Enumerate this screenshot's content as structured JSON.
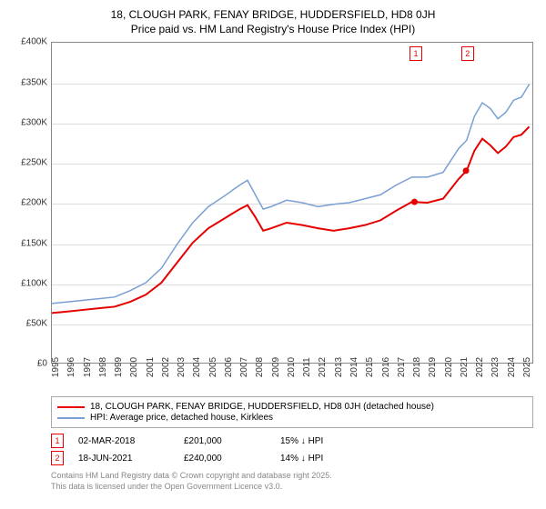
{
  "title_line1": "18, CLOUGH PARK, FENAY BRIDGE, HUDDERSFIELD, HD8 0JH",
  "title_line2": "Price paid vs. HM Land Registry's House Price Index (HPI)",
  "chart": {
    "type": "line",
    "background_color": "#ffffff",
    "grid_color": "#dddddd",
    "border_color": "#888888",
    "ylim": [
      0,
      400000
    ],
    "ytick_step": 50000,
    "yticks": [
      "£0",
      "£50K",
      "£100K",
      "£150K",
      "£200K",
      "£250K",
      "£300K",
      "£350K",
      "£400K"
    ],
    "x_start": 1995,
    "x_end": 2025.7,
    "xticks": [
      1995,
      1996,
      1997,
      1998,
      1999,
      2000,
      2001,
      2002,
      2003,
      2004,
      2005,
      2006,
      2007,
      2008,
      2009,
      2010,
      2011,
      2012,
      2013,
      2014,
      2015,
      2016,
      2017,
      2018,
      2019,
      2020,
      2021,
      2022,
      2023,
      2024,
      2025
    ],
    "label_fontsize": 10,
    "series": [
      {
        "name": "price_paid",
        "label": "18, CLOUGH PARK, FENAY BRIDGE, HUDDERSFIELD, HD8 0JH (detached house)",
        "color": "#e60000",
        "line_width": 2,
        "x": [
          1995,
          1996,
          1997,
          1998,
          1999,
          2000,
          2001,
          2002,
          2003,
          2004,
          2005,
          2006,
          2007,
          2007.5,
          2008,
          2008.5,
          2009,
          2010,
          2011,
          2012,
          2013,
          2014,
          2015,
          2016,
          2017,
          2018,
          2019,
          2020,
          2021,
          2021.5,
          2022,
          2022.5,
          2023,
          2023.5,
          2024,
          2024.5,
          2025,
          2025.5
        ],
        "y": [
          62000,
          64000,
          66000,
          68000,
          70000,
          76000,
          85000,
          100000,
          125000,
          150000,
          168000,
          180000,
          192000,
          197000,
          182000,
          165000,
          168000,
          175000,
          172000,
          168000,
          165000,
          168000,
          172000,
          178000,
          190000,
          201000,
          200000,
          205000,
          230000,
          240000,
          265000,
          280000,
          272000,
          262000,
          270000,
          282000,
          285000,
          295000
        ]
      },
      {
        "name": "hpi",
        "label": "HPI: Average price, detached house, Kirklees",
        "color": "#7a9fd4",
        "line_width": 1.5,
        "x": [
          1995,
          1996,
          1997,
          1998,
          1999,
          2000,
          2001,
          2002,
          2003,
          2004,
          2005,
          2006,
          2007,
          2007.5,
          2008,
          2008.5,
          2009,
          2010,
          2011,
          2012,
          2013,
          2014,
          2015,
          2016,
          2017,
          2018,
          2019,
          2020,
          2021,
          2021.5,
          2022,
          2022.5,
          2023,
          2023.5,
          2024,
          2024.5,
          2025,
          2025.5
        ],
        "y": [
          74000,
          76000,
          78000,
          80000,
          82000,
          90000,
          100000,
          118000,
          148000,
          175000,
          195000,
          208000,
          222000,
          228000,
          210000,
          192000,
          195000,
          203000,
          200000,
          195000,
          198000,
          200000,
          205000,
          210000,
          222000,
          232000,
          232000,
          238000,
          268000,
          278000,
          308000,
          325000,
          318000,
          305000,
          313000,
          328000,
          332000,
          348000
        ]
      }
    ],
    "sale_markers": [
      {
        "n": "1",
        "x": 2018.17,
        "y": 201000,
        "color": "#e60000"
      },
      {
        "n": "2",
        "x": 2021.46,
        "y": 240000,
        "color": "#e60000"
      }
    ]
  },
  "legend": {
    "items": [
      {
        "color": "#e60000",
        "width": 2,
        "label": "18, CLOUGH PARK, FENAY BRIDGE, HUDDERSFIELD, HD8 0JH (detached house)"
      },
      {
        "color": "#7a9fd4",
        "width": 1.5,
        "label": "HPI: Average price, detached house, Kirklees"
      }
    ]
  },
  "sales": [
    {
      "n": "1",
      "color": "#e60000",
      "date": "02-MAR-2018",
      "price": "£201,000",
      "diff": "15% ↓ HPI"
    },
    {
      "n": "2",
      "color": "#e60000",
      "date": "18-JUN-2021",
      "price": "£240,000",
      "diff": "14% ↓ HPI"
    }
  ],
  "footer_line1": "Contains HM Land Registry data © Crown copyright and database right 2025.",
  "footer_line2": "This data is licensed under the Open Government Licence v3.0."
}
